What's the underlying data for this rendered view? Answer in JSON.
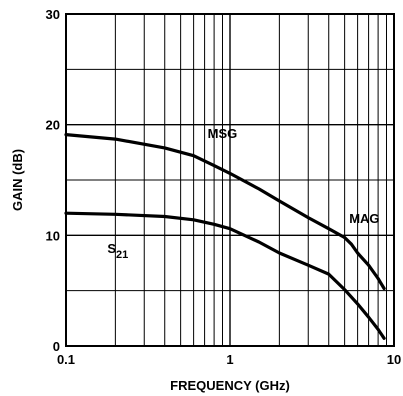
{
  "chart_data": {
    "type": "line",
    "x_scale": "log",
    "xlim": [
      0.1,
      10
    ],
    "ylim": [
      0,
      30
    ],
    "xlabel": "FREQUENCY (GHz)",
    "ylabel": "GAIN (dB)",
    "grid": true,
    "x_tick_labels": [
      {
        "value": 0.1,
        "label": "0.1"
      },
      {
        "value": 1,
        "label": "1"
      },
      {
        "value": 10,
        "label": "10"
      }
    ],
    "y_tick_labels": [
      {
        "value": 0,
        "label": "0"
      },
      {
        "value": 10,
        "label": "10"
      },
      {
        "value": 20,
        "label": "20"
      },
      {
        "value": 30,
        "label": "30"
      }
    ],
    "series": [
      {
        "name": "MSG",
        "x": [
          0.1,
          0.2,
          0.4,
          0.6,
          0.8,
          1.0,
          1.5,
          2.0,
          3.0,
          4.0,
          5.0
        ],
        "y": [
          19.1,
          18.7,
          17.9,
          17.2,
          16.3,
          15.6,
          14.2,
          13.1,
          11.6,
          10.6,
          9.8
        ]
      },
      {
        "name": "MAG",
        "x": [
          5.0,
          5.5,
          6.0,
          7.0,
          8.0,
          8.7
        ],
        "y": [
          9.8,
          9.2,
          8.4,
          7.3,
          6.1,
          5.2
        ]
      },
      {
        "name_main": "S",
        "name_sub": "21",
        "x": [
          0.1,
          0.2,
          0.4,
          0.6,
          0.8,
          1.0,
          1.5,
          2.0,
          3.0,
          4.0,
          5.0,
          6.0,
          7.0,
          8.0,
          8.7
        ],
        "y": [
          12.0,
          11.9,
          11.7,
          11.4,
          11.0,
          10.6,
          9.4,
          8.4,
          7.3,
          6.5,
          5.1,
          3.8,
          2.6,
          1.5,
          0.7
        ]
      }
    ],
    "series_labels": [
      {
        "text": "MSG",
        "series": 0,
        "at_x": 0.9,
        "at_y": 18.8
      },
      {
        "text": "MAG",
        "series": 1,
        "at_x": 6.6,
        "at_y": 11.1
      },
      {
        "text": "S",
        "sub": "21",
        "series": 2,
        "at_x": 0.2,
        "at_y": 8.4
      }
    ]
  }
}
